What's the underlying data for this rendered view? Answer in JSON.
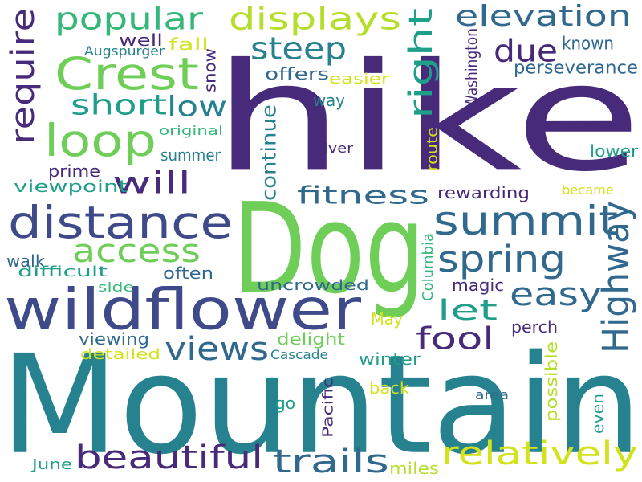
{
  "palette": {
    "background": "#ffffff",
    "dark_purple": "#472a7a",
    "navy_blue": "#3e4a89",
    "steel_blue": "#31688e",
    "teal_blue": "#26828e",
    "teal": "#1f9e89",
    "green": "#35b779",
    "light_green": "#6ece58",
    "lime": "#b5de2b",
    "yellow": "#d2e21b"
  },
  "words": [
    {
      "text": "hike"
    },
    {
      "text": "Mountain"
    },
    {
      "text": "Dog"
    },
    {
      "text": "wildflower"
    },
    {
      "text": "distance"
    },
    {
      "text": "Crest"
    },
    {
      "text": "loop"
    },
    {
      "text": "summit"
    },
    {
      "text": "popular"
    },
    {
      "text": "displays"
    },
    {
      "text": "elevation"
    },
    {
      "text": "require"
    },
    {
      "text": "steep"
    },
    {
      "text": "due"
    },
    {
      "text": "right"
    },
    {
      "text": "short"
    },
    {
      "text": "low"
    },
    {
      "text": "will"
    },
    {
      "text": "fitness"
    },
    {
      "text": "spring"
    },
    {
      "text": "easy"
    },
    {
      "text": "Highway"
    },
    {
      "text": "access"
    },
    {
      "text": "views"
    },
    {
      "text": "let"
    },
    {
      "text": "fool"
    },
    {
      "text": "beautiful"
    },
    {
      "text": "trails"
    },
    {
      "text": "relatively"
    },
    {
      "text": "perseverance"
    },
    {
      "text": "known"
    },
    {
      "text": "well"
    },
    {
      "text": "fall"
    },
    {
      "text": "Augspurger"
    },
    {
      "text": "snow"
    },
    {
      "text": "offers"
    },
    {
      "text": "easier"
    },
    {
      "text": "way"
    },
    {
      "text": "Washington"
    },
    {
      "text": "original"
    },
    {
      "text": "summer"
    },
    {
      "text": "prime"
    },
    {
      "text": "viewpoint"
    },
    {
      "text": "continue"
    },
    {
      "text": "River"
    },
    {
      "text": "lower"
    },
    {
      "text": "route"
    },
    {
      "text": "rewarding"
    },
    {
      "text": "became"
    },
    {
      "text": "walk"
    },
    {
      "text": "difficult"
    },
    {
      "text": "often"
    },
    {
      "text": "side"
    },
    {
      "text": "uncrowded"
    },
    {
      "text": "magic"
    },
    {
      "text": "Columbia"
    },
    {
      "text": "May"
    },
    {
      "text": "perch"
    },
    {
      "text": "viewing"
    },
    {
      "text": "detailed"
    },
    {
      "text": "delight"
    },
    {
      "text": "Cascade"
    },
    {
      "text": "winter"
    },
    {
      "text": "possible"
    },
    {
      "text": "back"
    },
    {
      "text": "area"
    },
    {
      "text": "go"
    },
    {
      "text": "even"
    },
    {
      "text": "Pacific"
    },
    {
      "text": "June"
    },
    {
      "text": "miles"
    }
  ]
}
